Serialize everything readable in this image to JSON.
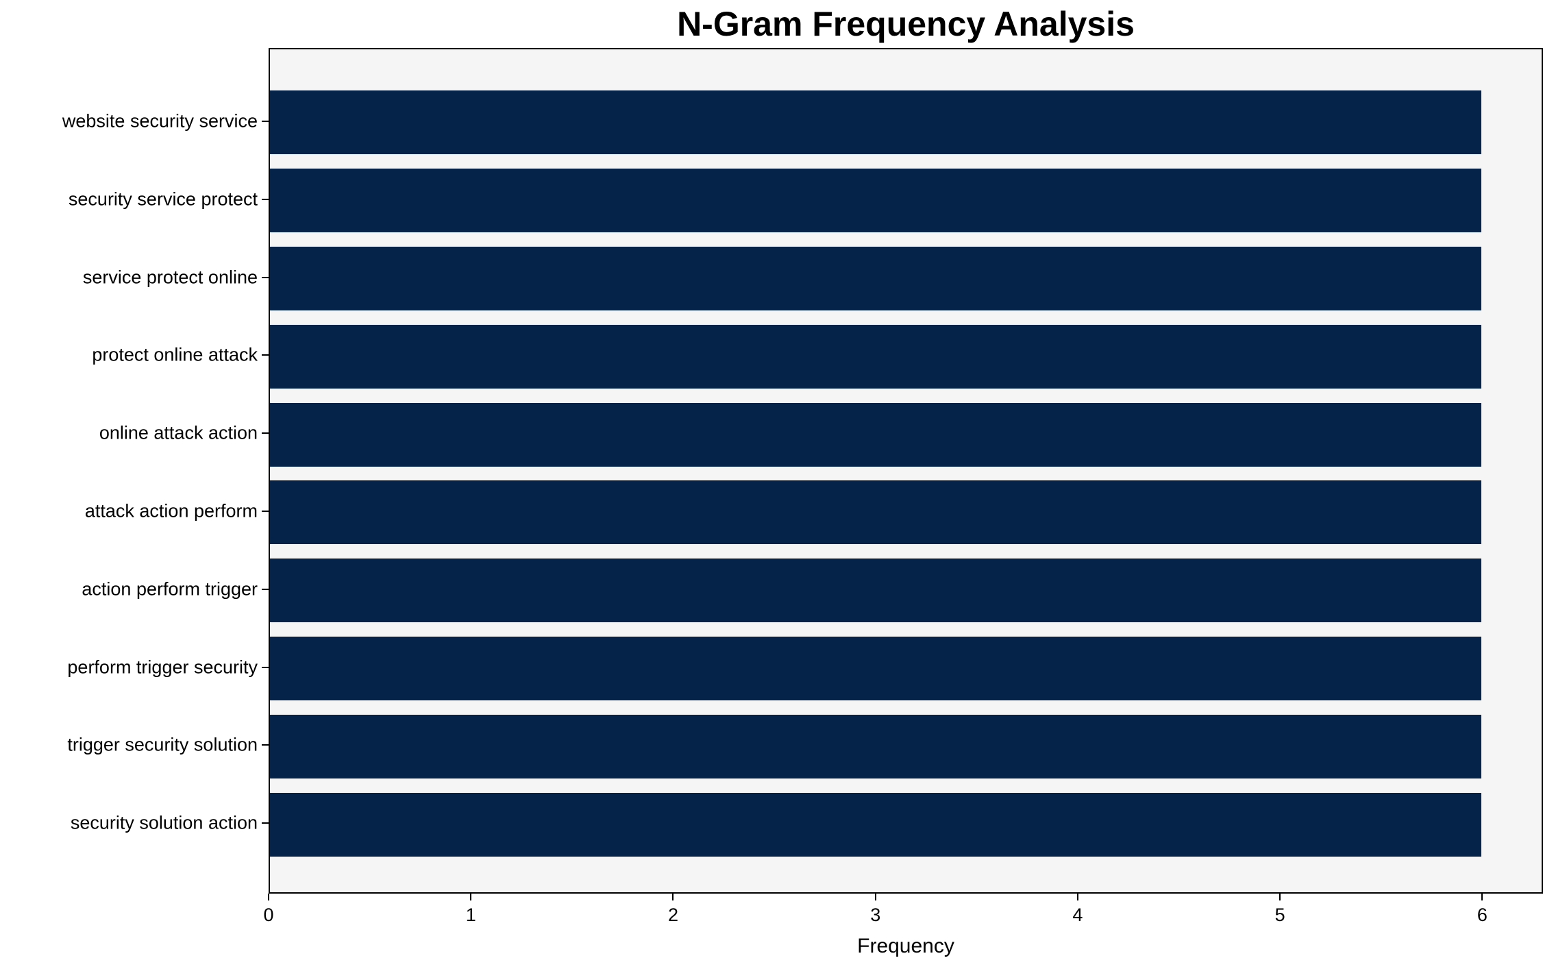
{
  "chart_data": {
    "type": "bar",
    "orientation": "horizontal",
    "title": "N-Gram Frequency Analysis",
    "xlabel": "Frequency",
    "ylabel": "",
    "categories": [
      "website security service",
      "security service protect",
      "service protect online",
      "protect online attack",
      "online attack action",
      "attack action perform",
      "action perform trigger",
      "perform trigger security",
      "trigger security solution",
      "security solution action"
    ],
    "values": [
      6,
      6,
      6,
      6,
      6,
      6,
      6,
      6,
      6,
      6
    ],
    "xticks": [
      0,
      1,
      2,
      3,
      4,
      5,
      6
    ],
    "xlim": [
      0,
      6.3
    ],
    "grid": false,
    "legend_position": "none",
    "bar_color": "#052348",
    "plot_background": "#f5f5f5",
    "figure_background": "#ffffff",
    "axis_color": "#000000"
  }
}
